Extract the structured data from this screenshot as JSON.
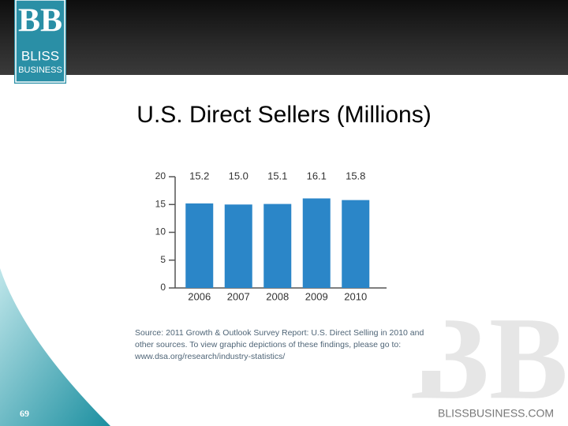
{
  "header": {
    "logo_mark": "BB",
    "logo_line1": "BLISS",
    "logo_line2": "BUSINESS"
  },
  "chart_data": {
    "type": "bar",
    "title": "U.S. Direct Sellers (Millions)",
    "categories": [
      "2006",
      "2007",
      "2008",
      "2009",
      "2010"
    ],
    "values": [
      15.2,
      15.0,
      15.1,
      16.1,
      15.8
    ],
    "value_labels": [
      "15.2",
      "15.0",
      "15.1",
      "16.1",
      "15.8"
    ],
    "color": "#2b86c8",
    "ylim": [
      0,
      20
    ],
    "yticks": [
      0,
      5,
      10,
      15,
      20
    ],
    "source": [
      "Source: 2011 Growth & Outlook Survey Report: U.S. Direct Selling in 2010 and",
      "other sources. To view graphic depictions of these findings, please go to:",
      "www.dsa.org/research/industry-statistics/"
    ]
  },
  "footer": {
    "page": "69",
    "watermark": "BB",
    "site": "BLISSBUSINESS.COM"
  }
}
